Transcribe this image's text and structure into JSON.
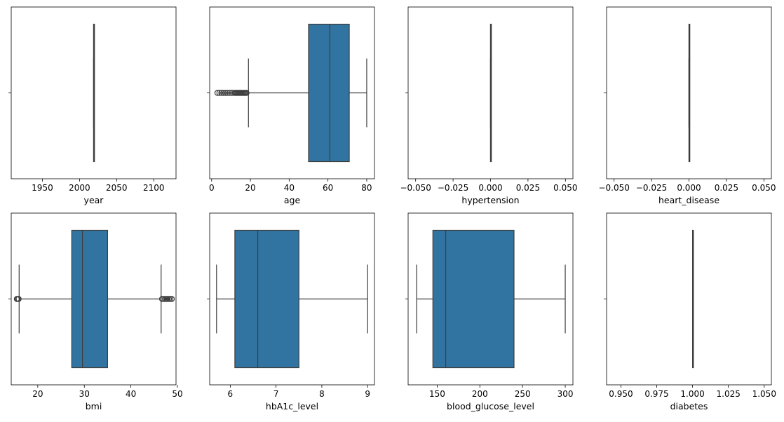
{
  "chart_data": [
    {
      "type": "boxplot",
      "xlabel": "year",
      "xlim": [
        1908,
        2130
      ],
      "ticks": [
        1950,
        2000,
        2050,
        2100
      ],
      "tick_labels": [
        "1950",
        "2000",
        "2050",
        "2100"
      ],
      "box": {
        "min": 2019,
        "q1": 2019,
        "median": 2019,
        "q3": 2019,
        "max": 2019
      },
      "outliers": []
    },
    {
      "type": "boxplot",
      "xlabel": "age",
      "xlim": [
        -1,
        84
      ],
      "ticks": [
        0,
        20,
        40,
        60,
        80
      ],
      "tick_labels": [
        "0",
        "20",
        "40",
        "60",
        "80"
      ],
      "box": {
        "min": 19,
        "q1": 50,
        "median": 61,
        "q3": 71,
        "max": 80
      },
      "outliers": [
        3,
        4,
        5,
        6,
        7,
        8,
        9,
        10,
        11,
        12,
        12.5,
        13,
        13.5,
        14,
        14.5,
        15,
        15.5,
        16,
        16.5,
        17,
        17.5,
        18
      ]
    },
    {
      "type": "boxplot",
      "xlabel": "hypertension",
      "xlim": [
        -0.055,
        0.055
      ],
      "ticks": [
        -0.05,
        -0.025,
        0,
        0.025,
        0.05
      ],
      "tick_labels": [
        "−0.050",
        "−0.025",
        "0.000",
        "0.025",
        "0.050"
      ],
      "box": {
        "min": 0,
        "q1": 0,
        "median": 0,
        "q3": 0,
        "max": 0
      },
      "outliers": []
    },
    {
      "type": "boxplot",
      "xlabel": "heart_disease",
      "xlim": [
        -0.055,
        0.055
      ],
      "ticks": [
        -0.05,
        -0.025,
        0,
        0.025,
        0.05
      ],
      "tick_labels": [
        "−0.050",
        "−0.025",
        "0.000",
        "0.025",
        "0.050"
      ],
      "box": {
        "min": 0,
        "q1": 0,
        "median": 0,
        "q3": 0,
        "max": 0
      },
      "outliers": []
    },
    {
      "type": "boxplot",
      "xlabel": "bmi",
      "xlim": [
        14.3,
        49.7
      ],
      "ticks": [
        20,
        30,
        40,
        50
      ],
      "tick_labels": [
        "20",
        "30",
        "40",
        "50"
      ],
      "box": {
        "min": 16,
        "q1": 27.3,
        "median": 29.6,
        "q3": 35,
        "max": 46.5
      },
      "outliers": [
        15.5,
        15.7,
        15.9,
        46.7,
        47,
        47.3,
        47.6,
        47.9,
        48.2,
        48.5,
        48.8
      ]
    },
    {
      "type": "boxplot",
      "xlabel": "hbA1c_level",
      "xlim": [
        5.55,
        9.15
      ],
      "ticks": [
        6,
        7,
        8,
        9
      ],
      "tick_labels": [
        "6",
        "7",
        "8",
        "9"
      ],
      "box": {
        "min": 5.7,
        "q1": 6.1,
        "median": 6.6,
        "q3": 7.5,
        "max": 9
      },
      "outliers": []
    },
    {
      "type": "boxplot",
      "xlabel": "blood_glucose_level",
      "xlim": [
        116,
        309
      ],
      "ticks": [
        150,
        200,
        250,
        300
      ],
      "tick_labels": [
        "150",
        "200",
        "250",
        "300"
      ],
      "box": {
        "min": 126,
        "q1": 145,
        "median": 160,
        "q3": 240,
        "max": 300
      },
      "outliers": []
    },
    {
      "type": "boxplot",
      "xlabel": "diabetes",
      "xlim": [
        0.94,
        1.055
      ],
      "ticks": [
        0.95,
        0.975,
        1,
        1.025,
        1.05
      ],
      "tick_labels": [
        "0.950",
        "0.975",
        "1.000",
        "1.025",
        "1.050"
      ],
      "box": {
        "min": 1,
        "q1": 1,
        "median": 1,
        "q3": 1,
        "max": 1
      },
      "outliers": []
    }
  ],
  "colors": {
    "box_fill": "#3274a1",
    "line": "#3d3d3d",
    "outlier_edge": "#3d3d3d"
  }
}
